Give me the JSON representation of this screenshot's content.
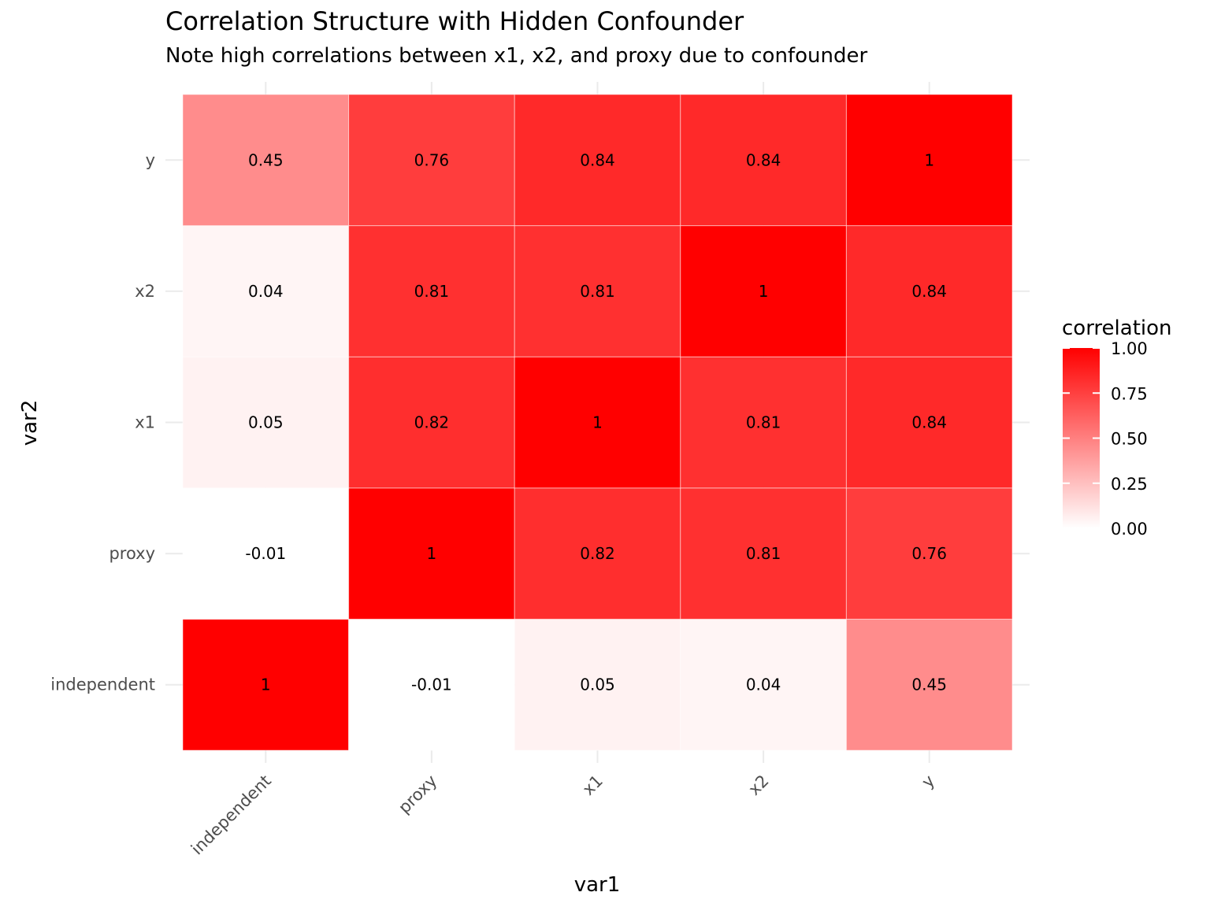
{
  "chart_data": {
    "type": "heatmap",
    "title": "Correlation Structure with Hidden Confounder",
    "subtitle": "Note high correlations between x1, x2, and proxy due to confounder",
    "xlabel": "var1",
    "ylabel": "var2",
    "x_categories": [
      "independent",
      "proxy",
      "x1",
      "x2",
      "y"
    ],
    "y_categories": [
      "independent",
      "proxy",
      "x1",
      "x2",
      "y"
    ],
    "values": [
      [
        1,
        -0.01,
        0.05,
        0.04,
        0.45
      ],
      [
        -0.01,
        1,
        0.82,
        0.81,
        0.76
      ],
      [
        0.05,
        0.82,
        1,
        0.81,
        0.84
      ],
      [
        0.04,
        0.81,
        0.81,
        1,
        0.84
      ],
      [
        0.45,
        0.76,
        0.84,
        0.84,
        1
      ]
    ],
    "labels": [
      [
        "1",
        "-0.01",
        "0.05",
        "0.04",
        "0.45"
      ],
      [
        "-0.01",
        "1",
        "0.82",
        "0.81",
        "0.76"
      ],
      [
        "0.05",
        "0.82",
        "1",
        "0.81",
        "0.84"
      ],
      [
        "0.04",
        "0.81",
        "0.81",
        "1",
        "0.84"
      ],
      [
        "0.45",
        "0.76",
        "0.84",
        "0.84",
        "1"
      ]
    ],
    "legend": {
      "title": "correlation",
      "ticks": [
        "0.00",
        "0.25",
        "0.50",
        "0.75",
        "1.00"
      ],
      "range": [
        0,
        1
      ],
      "low_color": "#ffffff",
      "high_color": "#ff0000",
      "placement": "right"
    },
    "grid": true
  }
}
